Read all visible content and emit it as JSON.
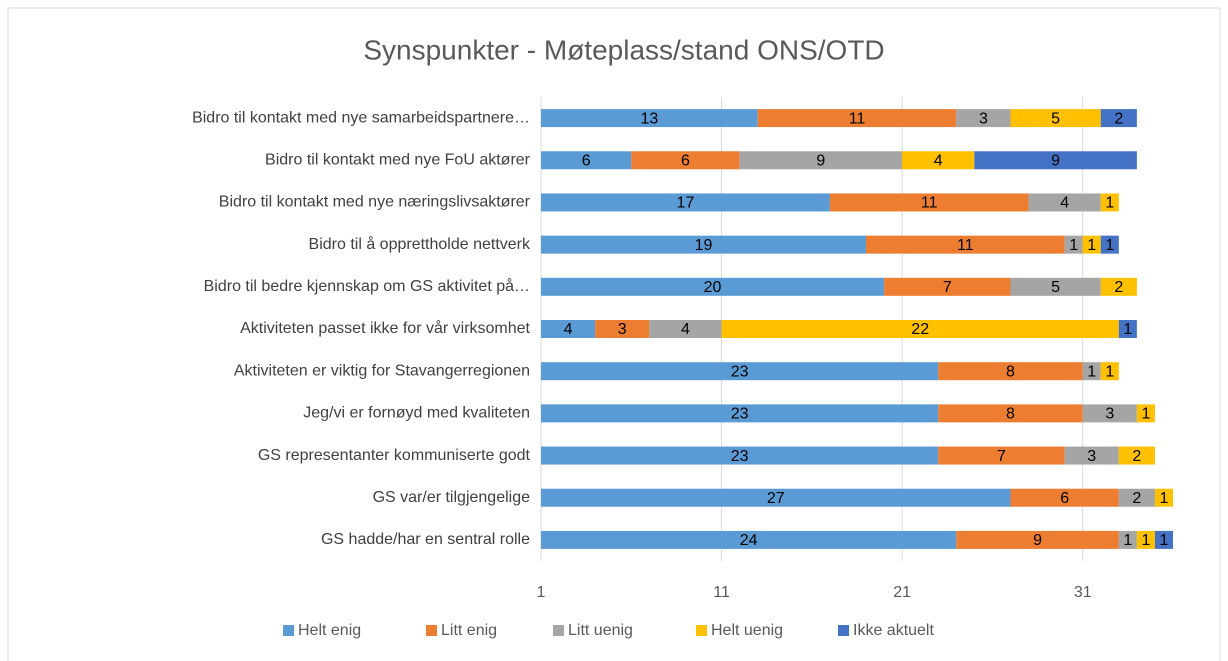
{
  "chart_data": {
    "type": "stacked-barh",
    "title": "Synspunkter - Møteplass/stand ONS/OTD",
    "categories": [
      "Bidro til kontakt med nye samarbeidspartnere…",
      "Bidro til kontakt med nye FoU aktører",
      "Bidro til kontakt med nye næringslivsaktører",
      "Bidro til å opprettholde nettverk",
      "Bidro til bedre kjennskap om GS aktivitet på…",
      "Aktiviteten passet ikke for vår virksomhet",
      "Aktiviteten er viktig for Stavangerregionen",
      "Jeg/vi er fornøyd med kvaliteten",
      "GS representanter kommuniserte godt",
      "GS var/er tilgjengelige",
      "GS hadde/har en sentral rolle"
    ],
    "series": [
      {
        "name": "Helt enig",
        "color": "#5b9bd5",
        "values": [
          13,
          6,
          17,
          19,
          20,
          4,
          23,
          23,
          23,
          27,
          24
        ]
      },
      {
        "name": "Litt enig",
        "color": "#ed7d31",
        "values": [
          11,
          6,
          11,
          11,
          7,
          3,
          8,
          8,
          7,
          6,
          9
        ]
      },
      {
        "name": "Litt uenig",
        "color": "#a5a5a5",
        "values": [
          3,
          9,
          4,
          1,
          5,
          4,
          1,
          3,
          3,
          2,
          1
        ]
      },
      {
        "name": "Helt uenig",
        "color": "#ffc000",
        "values": [
          5,
          4,
          1,
          1,
          2,
          22,
          1,
          1,
          2,
          1,
          1
        ]
      },
      {
        "name": "Ikke aktuelt",
        "color": "#4472c4",
        "values": [
          2,
          9,
          null,
          1,
          null,
          1,
          null,
          null,
          null,
          null,
          1
        ]
      }
    ],
    "xlim": [
      1,
      36
    ],
    "xticks": [
      1,
      11,
      21,
      31
    ],
    "grid": true,
    "legend": "bottom"
  }
}
